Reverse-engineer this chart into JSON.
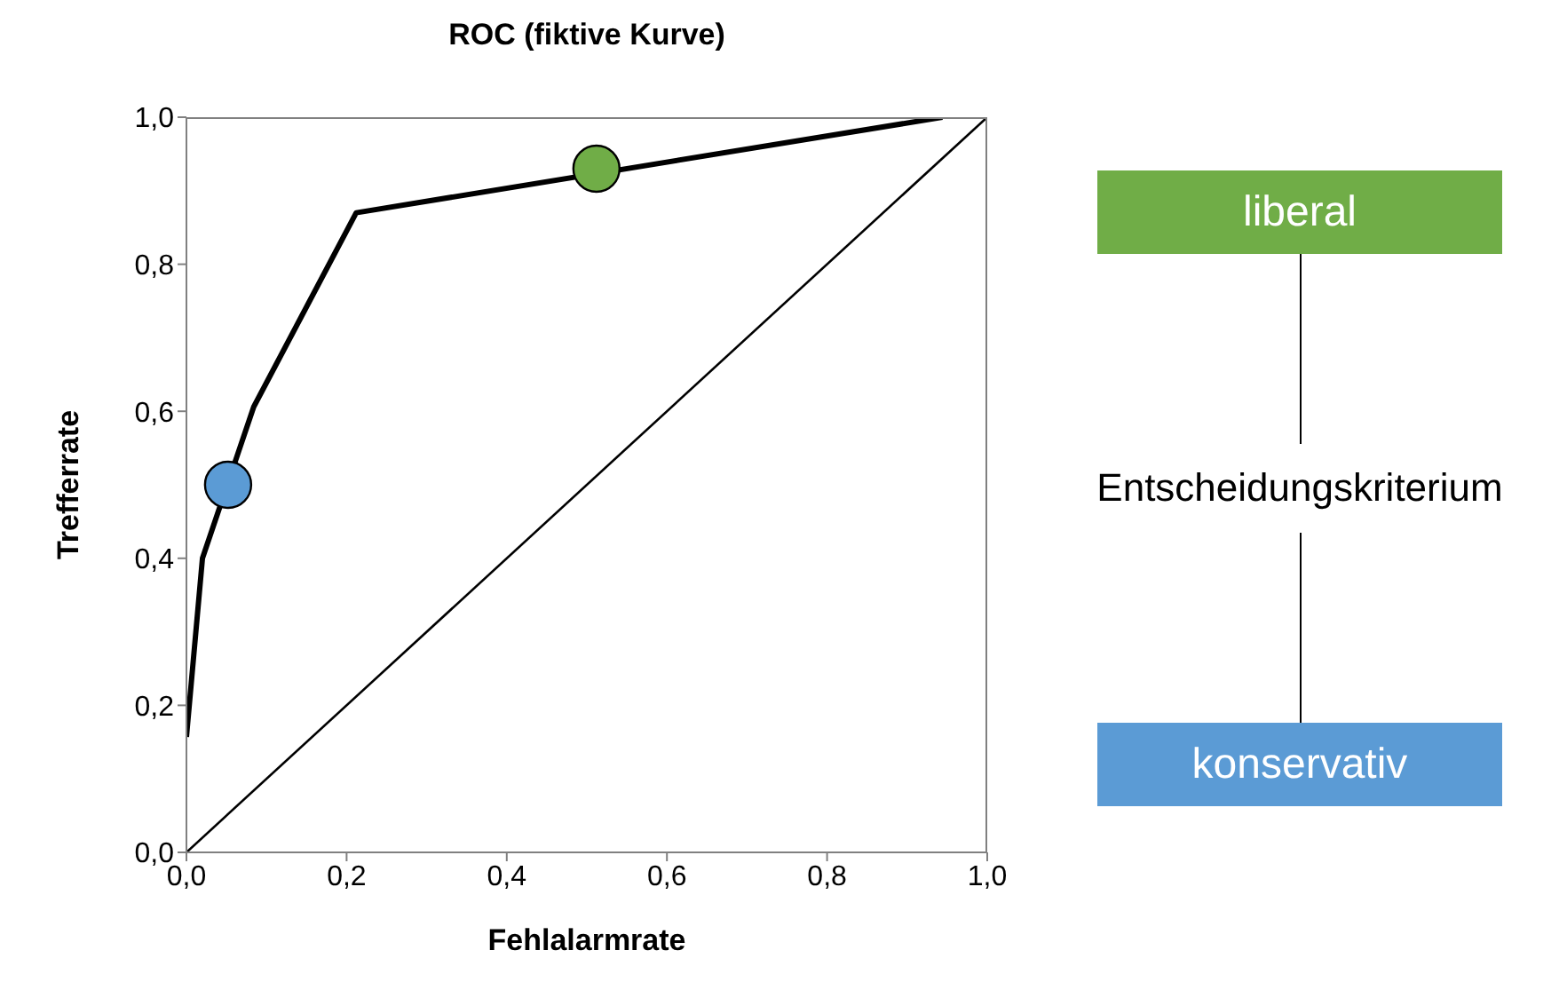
{
  "chart_data": {
    "type": "line",
    "title": "ROC (fiktive Kurve)",
    "xlabel": "Fehlalarmrate",
    "ylabel": "Trefferrate",
    "legend_title": "Entscheidungskriterium",
    "legend": "right",
    "grid": false,
    "xlim": [
      0,
      1
    ],
    "ylim": [
      0,
      1
    ],
    "xticks": [
      {
        "value": 0,
        "label": "0,0"
      },
      {
        "value": 0.2,
        "label": "0,2"
      },
      {
        "value": 0.4,
        "label": "0,4"
      },
      {
        "value": 0.6,
        "label": "0,6"
      },
      {
        "value": 0.8,
        "label": "0,8"
      },
      {
        "value": 1,
        "label": "1,0"
      }
    ],
    "yticks": [
      {
        "value": 0,
        "label": "0,0"
      },
      {
        "value": 0.2,
        "label": "0,2"
      },
      {
        "value": 0.4,
        "label": "0,4"
      },
      {
        "value": 0.6,
        "label": "0,6"
      },
      {
        "value": 0.8,
        "label": "0,8"
      },
      {
        "value": 1,
        "label": "1,0"
      }
    ],
    "series": [
      {
        "color": "#000000",
        "marker": "none",
        "line_style": "solid",
        "x": [
          0,
          0.02,
          0.084,
          0.212,
          0.944
        ],
        "values": [
          0.157,
          0.4,
          0.606,
          0.87,
          1.0
        ]
      },
      {
        "color": "#000000",
        "marker": "none",
        "line_style": "solid",
        "x": [
          0,
          1
        ],
        "values": [
          0,
          1
        ]
      },
      {
        "type": "scatter",
        "name": "liberal",
        "color": "#70ad47",
        "marker": "circle",
        "x": [
          0.512
        ],
        "values": [
          0.93
        ]
      },
      {
        "type": "scatter",
        "name": "konservativ",
        "color": "#5b9bd5",
        "marker": "circle",
        "x": [
          0.052
        ],
        "values": [
          0.5
        ]
      }
    ]
  }
}
